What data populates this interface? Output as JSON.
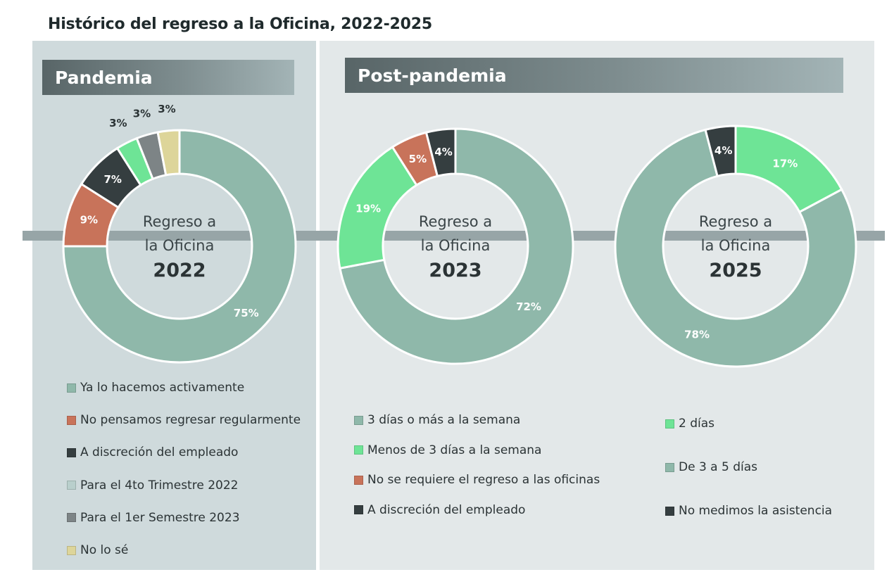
{
  "title": "Histórico del regreso a la Oficina, 2022-2025",
  "sections": {
    "left": "Pandemia",
    "right": "Post-pandemia"
  },
  "colors": {
    "sage": "#8fb8aa",
    "orange": "#c8735a",
    "dark": "#353e40",
    "green": "#6ee496",
    "gray": "#7d8486",
    "cream": "#ddd59a"
  },
  "chart_data": [
    {
      "type": "pie",
      "variant": "donut",
      "center_line1": "Regreso a",
      "center_line2": "la Oficina",
      "center_year": "2022",
      "slices": [
        {
          "label": "Ya lo hacemos activamente",
          "value": 75,
          "display": "75%",
          "color": "#8fb8aa",
          "label_position": "inside",
          "label_color": "#ffffff"
        },
        {
          "label": "No pensamos regresar regularmente",
          "value": 9,
          "display": "9%",
          "color": "#c8735a",
          "label_position": "inside",
          "label_color": "#ffffff"
        },
        {
          "label": "A discreción del empleado",
          "value": 7,
          "display": "7%",
          "color": "#353e40",
          "label_position": "inside",
          "label_color": "#ffffff"
        },
        {
          "label": "Para el 4to Trimestre 2022",
          "value": 3,
          "display": "3%",
          "color": "#6ee496",
          "label_position": "outside",
          "label_color": "#2b3335"
        },
        {
          "label": "Para el 1er Semestre 2023",
          "value": 3,
          "display": "3%",
          "color": "#7d8486",
          "label_position": "outside",
          "label_color": "#2b3335"
        },
        {
          "label": "No lo sé",
          "value": 3,
          "display": "3%",
          "color": "#ddd59a",
          "label_position": "outside",
          "label_color": "#2b3335"
        }
      ]
    },
    {
      "type": "pie",
      "variant": "donut",
      "center_line1": "Regreso a",
      "center_line2": "la Oficina",
      "center_year": "2023",
      "slices": [
        {
          "label": "3 días o más a la semana",
          "value": 72,
          "display": "72%",
          "color": "#8fb8aa",
          "label_position": "inside",
          "label_color": "#ffffff"
        },
        {
          "label": "Menos de 3 días a la semana",
          "value": 19,
          "display": "19%",
          "color": "#6ee496",
          "label_position": "inside",
          "label_color": "#ffffff"
        },
        {
          "label": "No se requiere el regreso a las oficinas",
          "value": 5,
          "display": "5%",
          "color": "#c8735a",
          "label_position": "inside",
          "label_color": "#ffffff"
        },
        {
          "label": "A discreción del empleado",
          "value": 4,
          "display": "4%",
          "color": "#353e40",
          "label_position": "inside",
          "label_color": "#ffffff"
        }
      ]
    },
    {
      "type": "pie",
      "variant": "donut",
      "center_line1": "Regreso a",
      "center_line2": "la Oficina",
      "center_year": "2025",
      "slices": [
        {
          "label": "2 días",
          "value": 17,
          "display": "17%",
          "color": "#6ee496",
          "label_position": "inside",
          "label_color": "#ffffff"
        },
        {
          "label": "De 3 a 5 días",
          "value": 78,
          "display": "78%",
          "color": "#8fb8aa",
          "label_position": "inside",
          "label_color": "#ffffff"
        },
        {
          "label": "No medimos la asistencia",
          "value": 4,
          "display": "4%",
          "color": "#353e40",
          "label_position": "inside",
          "label_color": "#ffffff"
        }
      ]
    }
  ],
  "legends": {
    "pandemia": [
      {
        "label": "Ya lo hacemos activamente",
        "color": "#8fb8aa"
      },
      {
        "label": "No pensamos regresar regularmente",
        "color": "#c8735a"
      },
      {
        "label": "A discreción del empleado",
        "color": "#353e40"
      },
      {
        "label": "Para el 4to Trimestre 2022",
        "color": "#b9cfcc"
      },
      {
        "label": "Para el 1er Semestre 2023",
        "color": "#7d8486"
      },
      {
        "label": "No lo sé",
        "color": "#ddd59a"
      }
    ],
    "post_2023": [
      {
        "label": "3 días o más a la semana",
        "color": "#8fb8aa"
      },
      {
        "label": "Menos de 3 días a la semana",
        "color": "#6ee496"
      },
      {
        "label": "No se requiere el regreso a las oficinas",
        "color": "#c8735a"
      },
      {
        "label": "A discreción del empleado",
        "color": "#353e40"
      }
    ],
    "post_2025": [
      {
        "label": "2 días",
        "color": "#6ee496"
      },
      {
        "label": "De 3 a 5 días",
        "color": "#8fb8aa"
      },
      {
        "label": "No medimos la asistencia",
        "color": "#353e40"
      }
    ]
  }
}
